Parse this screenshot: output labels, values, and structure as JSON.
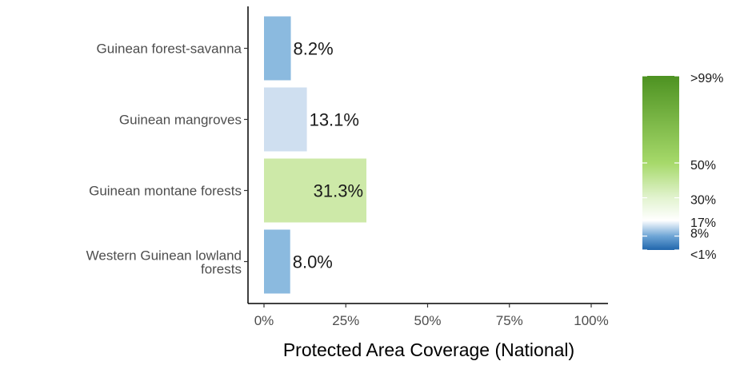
{
  "chart_data": {
    "type": "bar",
    "orientation": "horizontal",
    "categories": [
      "Guinean forest-savanna",
      "Guinean mangroves",
      "Guinean montane forests",
      "Western Guinean lowland forests"
    ],
    "category_lines": [
      [
        "Guinean forest-savanna"
      ],
      [
        "Guinean mangroves"
      ],
      [
        "Guinean montane forests"
      ],
      [
        "Western Guinean lowland",
        "forests"
      ]
    ],
    "values": [
      8.2,
      13.1,
      31.3,
      8.0
    ],
    "value_labels": [
      "8.2%",
      "13.1%",
      "31.3%",
      "8.0%"
    ],
    "bar_colors": [
      "#8bbadf",
      "#cfdff0",
      "#cde9a8",
      "#8bbadf"
    ],
    "xlabel": "Protected Area Coverage (National)",
    "xlim": [
      0,
      100
    ],
    "x_ticks": [
      0,
      25,
      50,
      75,
      100
    ],
    "x_tick_labels": [
      "0%",
      "25%",
      "50%",
      "75%",
      "100%"
    ],
    "grid": false,
    "legend": {
      "position": "right",
      "type": "colorbar",
      "stops": [
        {
          "value": 0,
          "color": "#2166ac"
        },
        {
          "value": 8,
          "color": "#6fa6d6"
        },
        {
          "value": 17,
          "color": "#ffffff"
        },
        {
          "value": 30,
          "color": "#e2f3cf"
        },
        {
          "value": 50,
          "color": "#a6d96a"
        },
        {
          "value": 100,
          "color": "#4d9221"
        }
      ],
      "labels": [
        {
          "value": 100,
          "text": ">99%"
        },
        {
          "value": 50,
          "text": "50%"
        },
        {
          "value": 30,
          "text": "30%"
        },
        {
          "value": 17,
          "text": "17%"
        },
        {
          "value": 8,
          "text": "8%"
        },
        {
          "value": 0,
          "text": "<1%"
        }
      ]
    }
  }
}
